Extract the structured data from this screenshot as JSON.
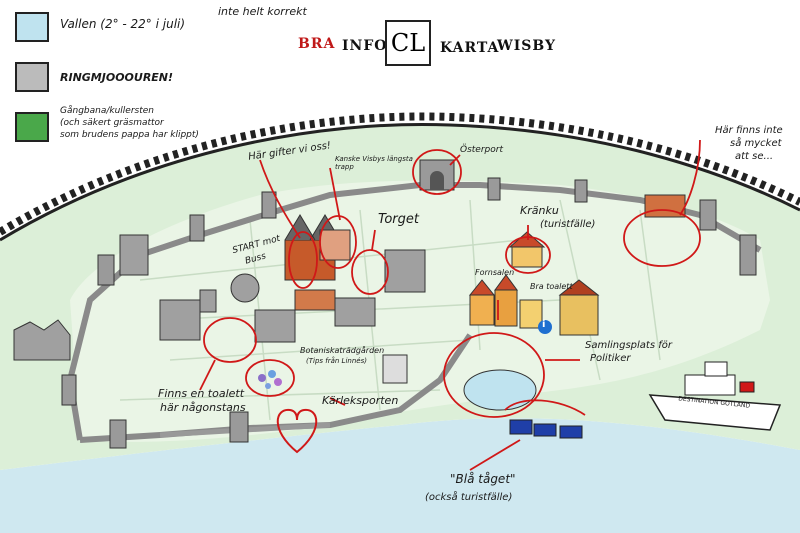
{
  "legend": {
    "wall_label": "Vallen (2° - 22° i juli)",
    "wall_note": "inte helt korrekt",
    "ring_label": "RINGMJOOOUREN!",
    "path_label_1": "Gångbana/kullersten",
    "path_label_2": "(och säkert gräsmattor",
    "path_label_3": "som brudens pappa har klippt)",
    "colors": {
      "vallen": "#bfe3ef",
      "grass": "#4aa84a",
      "wall": "#777777"
    }
  },
  "title": {
    "bra": "BRA",
    "info": "INFO",
    "logo": "CL",
    "karta": "KARTA",
    "wisby": "WISBY"
  },
  "labels": {
    "har_gifter": "Här gifter vi oss!",
    "kanske": "Kanske Visbys längsta trapp",
    "osterport": "Österport",
    "har_finns_1": "Här finns inte",
    "har_finns_2": "så mycket",
    "har_finns_3": "att se...",
    "torget": "Torget",
    "kranku_1": "Kränku",
    "kranku_2": "(turistfälle)",
    "start_1": "START mot",
    "start_2": "Buss",
    "fornsalen": "Fornsalen",
    "bra_toalett": "Bra toalett",
    "samlingsplats_1": "Samlingsplats för",
    "samlingsplats_2": "Politiker",
    "botanisk_1": "Botaniskaträdgården",
    "botanisk_2": "(Tips från Linnés)",
    "finns_1": "Finns en toalett",
    "finns_2": "här någonstans",
    "karleksporten": "Kärleksporten",
    "bla_taget_1": "\"Blå tåget\"",
    "bla_taget_2": "(också turistfälle)",
    "destination": "DESTINATION GOTLAND",
    "info_icon": "i"
  },
  "icons": [
    "info-icon",
    "heart-icon",
    "ferry-icon",
    "train-icon",
    "wall-tower-icon",
    "grass-icon"
  ]
}
